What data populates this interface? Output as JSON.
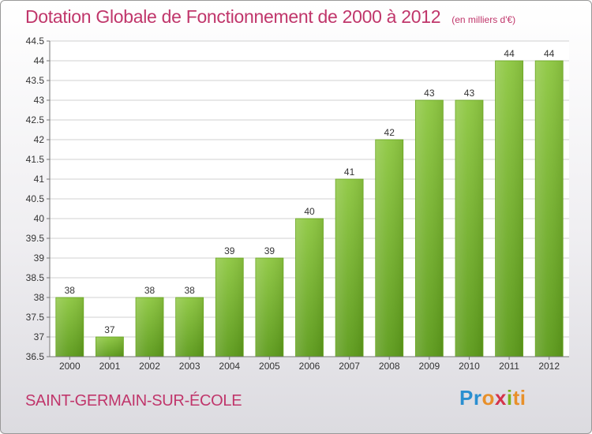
{
  "title": "Dotation Globale de Fonctionnement de 2000 à 2012",
  "unit": "(en milliers d'€)",
  "commune": "SAINT-GERMAIN-SUR-ÉCOLE",
  "logo": {
    "p": "Pr",
    "o": "o",
    "x": "x",
    "i": "i",
    "ti": "ti"
  },
  "colors": {
    "title": "#c0366b",
    "bar_top": "#8cc63f",
    "bar_bottom": "#5a9a18",
    "grid": "#c8c8c8"
  },
  "chart_data": {
    "type": "bar",
    "categories": [
      "2000",
      "2001",
      "2002",
      "2003",
      "2004",
      "2005",
      "2006",
      "2007",
      "2008",
      "2009",
      "2010",
      "2011",
      "2012"
    ],
    "values": [
      38,
      37,
      38,
      38,
      39,
      39,
      40,
      41,
      42,
      43,
      43,
      44,
      44
    ],
    "value_labels": [
      "38",
      "37",
      "38",
      "38",
      "39",
      "39",
      "40",
      "41",
      "42",
      "43",
      "43",
      "44",
      "44"
    ],
    "ylim": [
      36.5,
      44.5
    ],
    "yticks": [
      "36.5",
      "37",
      "37.5",
      "38",
      "38.5",
      "39",
      "39.5",
      "40",
      "40.5",
      "41",
      "41.5",
      "42",
      "42.5",
      "43",
      "43.5",
      "44",
      "44.5"
    ],
    "grid": true
  }
}
